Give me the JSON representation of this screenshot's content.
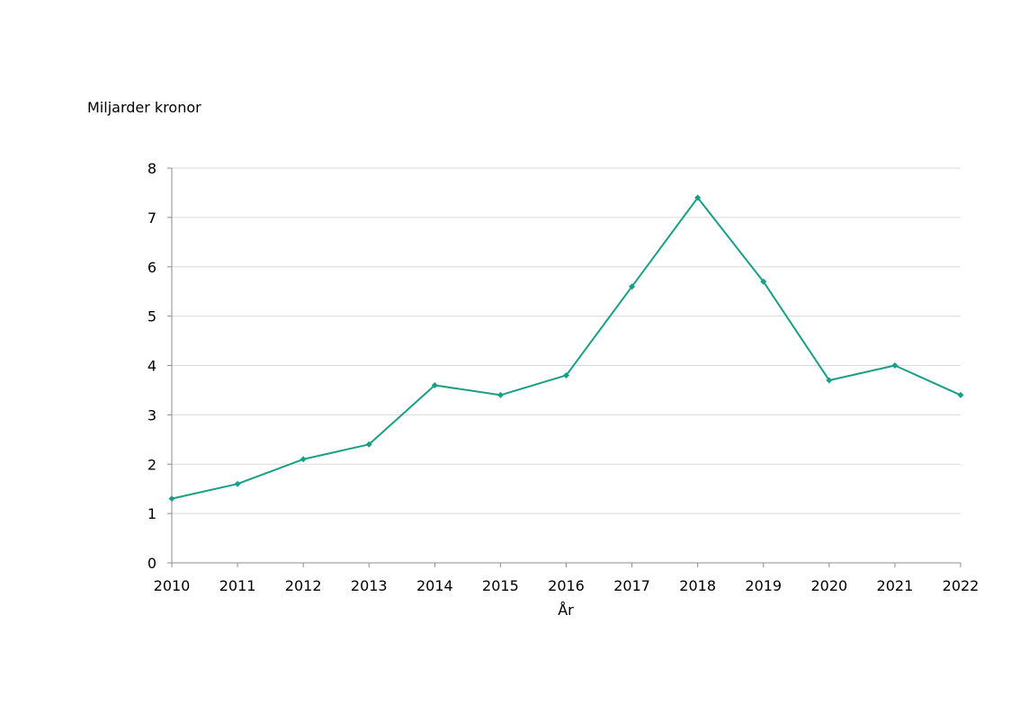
{
  "chart_data": {
    "type": "line",
    "title": "",
    "ylabel": "Miljarder kronor",
    "xlabel": "År",
    "categories": [
      "2010",
      "2011",
      "2012",
      "2013",
      "2014",
      "2015",
      "2016",
      "2017",
      "2018",
      "2019",
      "2020",
      "2021",
      "2022"
    ],
    "series": [
      {
        "values": [
          1.3,
          1.6,
          2.1,
          2.4,
          3.6,
          3.4,
          3.8,
          5.6,
          7.4,
          5.7,
          3.7,
          4.0,
          3.4
        ]
      }
    ],
    "ylim": [
      0,
      8
    ],
    "yticks": [
      "0",
      "1",
      "2",
      "3",
      "4",
      "5",
      "6",
      "7",
      "8"
    ],
    "grid": true,
    "legend": "none",
    "colors": {
      "line": "#17a086",
      "grid": "#d9d9d9",
      "axis": "#8c8c8c"
    }
  }
}
